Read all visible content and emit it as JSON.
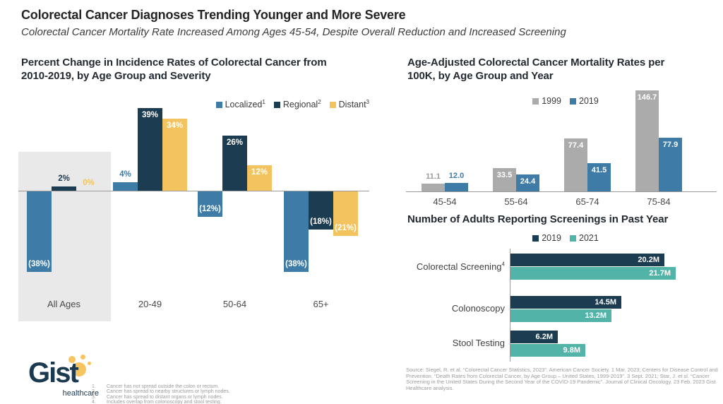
{
  "header": {
    "title": "Colorectal Cancer Diagnoses Trending Younger and More Severe",
    "subtitle": "Colorectal Cancer Mortality Rate Increased Among Ages 45-54, Despite Overall Reduction and Increased Screening"
  },
  "colors": {
    "steel_blue": "#3E7BA6",
    "navy": "#1C3C52",
    "yellow": "#F3C35F",
    "gray_bar": "#ABABAB",
    "teal": "#52B4A9",
    "highlight_box": "#E9E9E9",
    "axis": "#9A9A9A",
    "muted_text": "#9B9B9B"
  },
  "chart_data": [
    {
      "type": "bar",
      "title": "Percent Change in Incidence Rates of Colorectal Cancer from 2010-2019, by Age Group and Severity",
      "unit": "%",
      "legend": [
        {
          "name": "Localized",
          "sup": "1",
          "color": "#3E7BA6"
        },
        {
          "name": "Regional",
          "sup": "2",
          "color": "#1C3C52"
        },
        {
          "name": "Distant",
          "sup": "3",
          "color": "#F3C35F"
        }
      ],
      "categories": [
        "All Ages",
        "20-49",
        "50-64",
        "65+"
      ],
      "groups": [
        {
          "category": "All Ages",
          "highlight": true,
          "values": [
            -38,
            2,
            0
          ],
          "labels": [
            "(38%)",
            "2%",
            "0%"
          ],
          "label_inside": [
            true,
            false,
            false
          ]
        },
        {
          "category": "20-49",
          "highlight": false,
          "values": [
            4,
            39,
            34
          ],
          "labels": [
            "4%",
            "39%",
            "34%"
          ],
          "label_inside": [
            false,
            true,
            true
          ]
        },
        {
          "category": "50-64",
          "highlight": false,
          "values": [
            -12,
            26,
            12
          ],
          "labels": [
            "(12%)",
            "26%",
            "12%"
          ],
          "label_inside": [
            true,
            true,
            true
          ]
        },
        {
          "category": "65+",
          "highlight": false,
          "values": [
            -38,
            -18,
            -21
          ],
          "labels": [
            "(38%)",
            "(18%)",
            "(21%)"
          ],
          "label_inside": [
            true,
            true,
            true
          ]
        }
      ]
    },
    {
      "type": "bar",
      "title": "Age-Adjusted Colorectal Cancer Mortality Rates per 100K, by Age Group and Year",
      "legend": [
        {
          "name": "1999",
          "color": "#ABABAB"
        },
        {
          "name": "2019",
          "color": "#3E7BA6"
        }
      ],
      "categories": [
        "45-54",
        "55-64",
        "65-74",
        "75-84"
      ],
      "series": [
        {
          "name": "1999",
          "values": [
            11.1,
            33.5,
            77.4,
            146.7
          ],
          "labels": [
            "11.1",
            "33.5",
            "77.4",
            "146.7"
          ],
          "label_inside": [
            false,
            true,
            true,
            true
          ]
        },
        {
          "name": "2019",
          "values": [
            12.0,
            24.4,
            41.5,
            77.9
          ],
          "labels": [
            "12.0",
            "24.4",
            "41.5",
            "77.9"
          ],
          "label_inside": [
            false,
            true,
            true,
            true
          ]
        }
      ]
    },
    {
      "type": "bar-horizontal",
      "title": "Number of Adults Reporting Screenings in Past Year",
      "legend": [
        {
          "name": "2019",
          "color": "#1C3C52"
        },
        {
          "name": "2021",
          "color": "#52B4A9"
        }
      ],
      "categories": [
        {
          "label": "Colorectal Screening",
          "sup": "4"
        },
        {
          "label": "Colonoscopy",
          "sup": ""
        },
        {
          "label": "Stool Testing",
          "sup": ""
        }
      ],
      "series": [
        {
          "name": "2019",
          "values": [
            20.2,
            14.5,
            6.2
          ],
          "labels": [
            "20.2M",
            "14.5M",
            "6.2M"
          ]
        },
        {
          "name": "2021",
          "values": [
            21.7,
            13.2,
            9.8
          ],
          "labels": [
            "21.7M",
            "13.2M",
            "9.8M"
          ]
        }
      ]
    }
  ],
  "footnotes": [
    {
      "num": "1.",
      "text": "Cancer has not spread outside the colon or rectum."
    },
    {
      "num": "2.",
      "text": "Cancer has spread to nearby structures or lymph nodes."
    },
    {
      "num": "3.",
      "text": "Cancer has spread to distant organs or lymph nodes."
    },
    {
      "num": "4.",
      "text": "Includes overlap from colonoscopy and stool testing."
    }
  ],
  "source": "Source: Siegel, R. et al. “Colorectal Cancer Statistics, 2023”. American Cancer Society.  1 Mar. 2023; Centers for Disease Control and Prevention. “Death Rates from Colorectal Cancer, by Age Group – United States, 1999-2019”. 3 Sept. 2021; Star, J. et sl. “Cancer Screening in the United States During the Second Year of the COVID-19 Pandemic”. Journal of Clinical Oncology. 23 Feb. 2023 Gist Healthcare analysis.",
  "logo": {
    "name": "Gist",
    "tagline": "healthcare"
  }
}
